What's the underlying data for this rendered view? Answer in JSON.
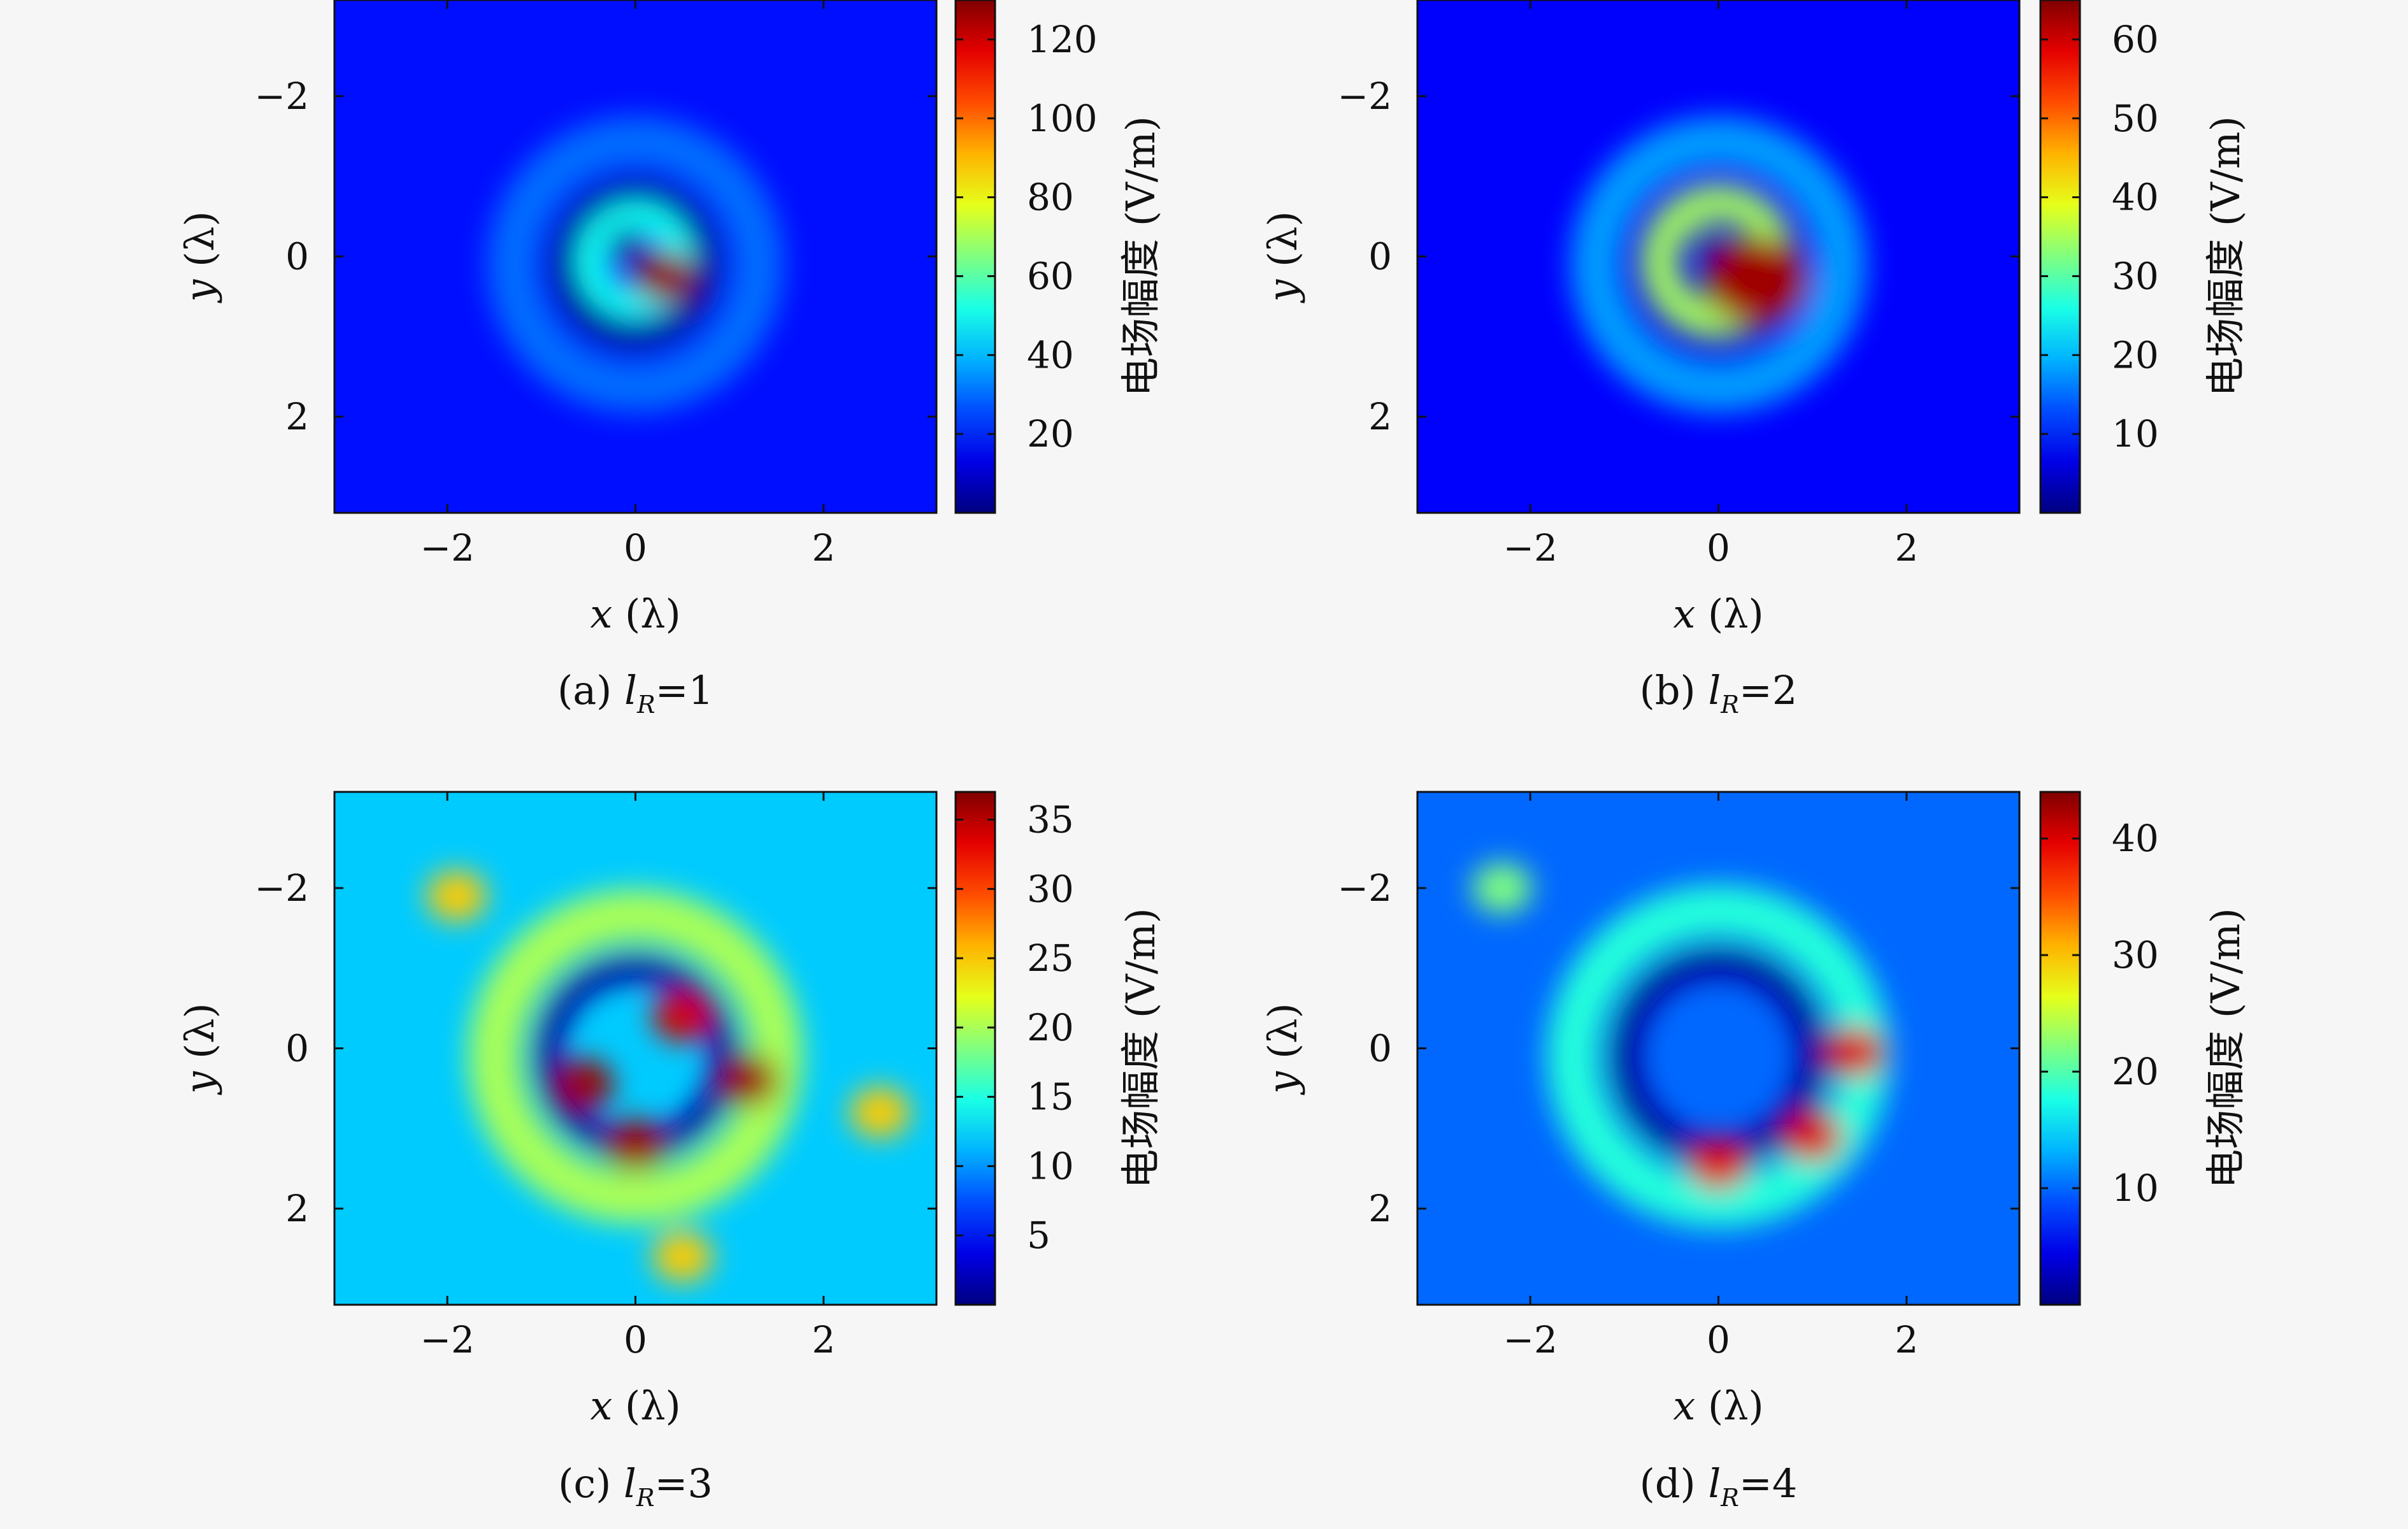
{
  "chart_data": [
    {
      "type": "heatmap",
      "caption_prefix": "(a) ",
      "caption_l": "l",
      "caption_sub": "R",
      "caption_value": "=1",
      "xlabel_var": "x",
      "xlabel_unit": "(λ)",
      "ylabel_var": "y",
      "ylabel_unit": "(λ)",
      "xlim": [
        -3.2,
        3.2
      ],
      "ylim": [
        -3.2,
        3.2
      ],
      "xticks": [
        -2,
        0,
        2
      ],
      "xtick_labels": [
        "−2",
        "0",
        "2"
      ],
      "yticks": [
        -2,
        0,
        2
      ],
      "ytick_labels": [
        "−2",
        "0",
        "2"
      ],
      "y_axis_inverted": true,
      "colorbar": {
        "label": "电场幅度 (V/m)",
        "range": [
          0,
          130
        ],
        "ticks": [
          20,
          40,
          60,
          80,
          100,
          120
        ],
        "tick_labels": [
          "20",
          "40",
          "60",
          "80",
          "100",
          "120"
        ],
        "colormap": "jet"
      },
      "field_features": [
        {
          "kind": "hotspot",
          "x": 0.3,
          "y": 0.25,
          "value": 128
        },
        {
          "kind": "inner_ring",
          "radius": 0.45,
          "value": 50
        },
        {
          "kind": "outer_ring",
          "radius": 1.3,
          "value": 30
        },
        {
          "kind": "background",
          "value": 18
        }
      ]
    },
    {
      "type": "heatmap",
      "caption_prefix": "(b) ",
      "caption_l": "l",
      "caption_sub": "R",
      "caption_value": "=2",
      "xlabel_var": "x",
      "xlabel_unit": "(λ)",
      "ylabel_var": "y",
      "ylabel_unit": "(λ)",
      "xlim": [
        -3.2,
        3.2
      ],
      "ylim": [
        -3.2,
        3.2
      ],
      "xticks": [
        -2,
        0,
        2
      ],
      "xtick_labels": [
        "−2",
        "0",
        "2"
      ],
      "yticks": [
        -2,
        0,
        2
      ],
      "ytick_labels": [
        "−2",
        "0",
        "2"
      ],
      "y_axis_inverted": true,
      "colorbar": {
        "label": "电场幅度 (V/m)",
        "range": [
          0,
          65
        ],
        "ticks": [
          10,
          20,
          30,
          40,
          50,
          60
        ],
        "tick_labels": [
          "10",
          "20",
          "30",
          "40",
          "50",
          "60"
        ],
        "colormap": "jet"
      },
      "field_features": [
        {
          "kind": "crescent_hotspot",
          "x": 0.4,
          "y": 0.3,
          "value": 63
        },
        {
          "kind": "inner_ring",
          "radius": 0.6,
          "value": 35
        },
        {
          "kind": "outer_ring",
          "radius": 1.3,
          "value": 18
        },
        {
          "kind": "background",
          "value": 8
        }
      ]
    },
    {
      "type": "heatmap",
      "caption_prefix": "(c) ",
      "caption_l": "l",
      "caption_sub": "R",
      "caption_value": "=3",
      "xlabel_var": "x",
      "xlabel_unit": "(λ)",
      "ylabel_var": "y",
      "ylabel_unit": "(λ)",
      "xlim": [
        -3.2,
        3.2
      ],
      "ylim": [
        -3.2,
        3.2
      ],
      "xticks": [
        -2,
        0,
        2
      ],
      "xtick_labels": [
        "−2",
        "0",
        "2"
      ],
      "yticks": [
        -2,
        0,
        2
      ],
      "ytick_labels": [
        "−2",
        "0",
        "2"
      ],
      "y_axis_inverted": true,
      "colorbar": {
        "label": "电场幅度 (V/m)",
        "range": [
          0,
          37
        ],
        "ticks": [
          5,
          10,
          15,
          20,
          25,
          30,
          35
        ],
        "tick_labels": [
          "5",
          "10",
          "15",
          "20",
          "25",
          "30",
          "35"
        ],
        "colormap": "jet"
      },
      "field_features": [
        {
          "kind": "hotspot",
          "x": -0.55,
          "y": 0.45,
          "value": 36
        },
        {
          "kind": "hotspot",
          "x": 0.5,
          "y": -0.4,
          "value": 34
        },
        {
          "kind": "hotspot",
          "x": 0.0,
          "y": 1.2,
          "value": 36
        },
        {
          "kind": "hotspot",
          "x": 1.2,
          "y": 0.4,
          "value": 36
        },
        {
          "kind": "outer_ring",
          "radius": 1.5,
          "value": 20
        },
        {
          "kind": "hotspot",
          "x": -1.9,
          "y": -1.9,
          "value": 25
        },
        {
          "kind": "hotspot",
          "x": 2.6,
          "y": 0.8,
          "value": 25
        },
        {
          "kind": "hotspot",
          "x": 0.5,
          "y": 2.6,
          "value": 25
        },
        {
          "kind": "background",
          "value": 12
        }
      ]
    },
    {
      "type": "heatmap",
      "caption_prefix": "(d) ",
      "caption_l": "l",
      "caption_sub": "R",
      "caption_value": "=4",
      "xlabel_var": "x",
      "xlabel_unit": "(λ)",
      "ylabel_var": "y",
      "ylabel_unit": "(λ)",
      "xlim": [
        -3.2,
        3.2
      ],
      "ylim": [
        -3.2,
        3.2
      ],
      "xticks": [
        -2,
        0,
        2
      ],
      "xtick_labels": [
        "−2",
        "0",
        "2"
      ],
      "yticks": [
        -2,
        0,
        2
      ],
      "ytick_labels": [
        "−2",
        "0",
        "2"
      ],
      "y_axis_inverted": true,
      "colorbar": {
        "label": "电场幅度 (V/m)",
        "range": [
          0,
          44
        ],
        "ticks": [
          10,
          20,
          30,
          40
        ],
        "tick_labels": [
          "10",
          "20",
          "30",
          "40"
        ],
        "colormap": "jet"
      },
      "field_features": [
        {
          "kind": "hotspot",
          "x": 1.45,
          "y": 0.05,
          "value": 40
        },
        {
          "kind": "hotspot",
          "x": 1.0,
          "y": 1.1,
          "value": 40
        },
        {
          "kind": "hotspot",
          "x": 0.0,
          "y": 1.45,
          "value": 40
        },
        {
          "kind": "outer_ring",
          "radius": 1.55,
          "value": 18
        },
        {
          "kind": "hotspot",
          "x": -2.3,
          "y": -2.0,
          "value": 22
        },
        {
          "kind": "background",
          "value": 10
        }
      ]
    }
  ]
}
